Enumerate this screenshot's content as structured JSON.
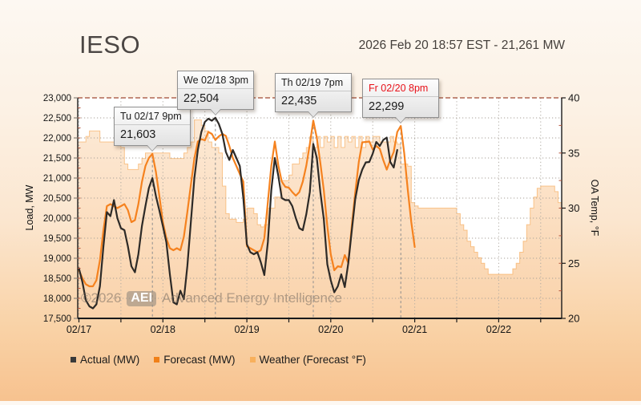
{
  "header": {
    "title": "IESO",
    "timestamp_line": "2026 Feb 20 18:57 EST - 21,261 MW",
    "current_load_mw": 21261
  },
  "watermark": {
    "year": "©2026",
    "badge": "AEI",
    "text": "Advanced Energy Intelligence"
  },
  "legend": [
    {
      "label": "Actual (MW)",
      "color": "#3a3a3a"
    },
    {
      "label": "Forecast (MW)",
      "color": "#f08019"
    },
    {
      "label": "Weather (Forecast °F)",
      "color": "#f8b05c"
    }
  ],
  "annotations": [
    {
      "time_label": "Tu 02/17 9pm",
      "value_label": "21,603",
      "value": 21603,
      "hour": 21,
      "header_color": "#1b1b1b"
    },
    {
      "time_label": "We 02/18 3pm",
      "value_label": "22,504",
      "value": 22504,
      "hour": 39,
      "header_color": "#1b1b1b"
    },
    {
      "time_label": "Th 02/19 7pm",
      "value_label": "22,435",
      "value": 22435,
      "hour": 67,
      "header_color": "#1b1b1b"
    },
    {
      "time_label": "Fr 02/20 8pm",
      "value_label": "22,299",
      "value": 22299,
      "hour": 92,
      "header_color": "#e8121a"
    }
  ],
  "chart_data": {
    "type": "line",
    "x_axis": {
      "labels": [
        "02/17",
        "02/18",
        "02/19",
        "02/20",
        "02/21",
        "02/22"
      ],
      "hours_per_label": 24,
      "total_hours": 138,
      "x_start": "02/17 00:00",
      "sample_interval_hours": 1,
      "minor_tick_hours": 12
    },
    "y_left": {
      "label": "Load, MW",
      "min": 17500,
      "max": 23000,
      "step": 500
    },
    "y_right": {
      "label": "OA Temp, °F",
      "min": 20,
      "max": 40,
      "step": 5
    },
    "grid": {
      "horizontal": "dotted",
      "vertical_every_hours": 12,
      "top_line_color": "#a14a33"
    },
    "series": [
      {
        "name": "Actual (MW)",
        "type": "line",
        "axis": "left",
        "color": "#2d2a27",
        "start_hour": 0,
        "values": [
          18750,
          18400,
          17950,
          17800,
          17750,
          17850,
          18300,
          19300,
          20150,
          20050,
          20450,
          20000,
          19750,
          19700,
          19300,
          18800,
          18650,
          19100,
          19800,
          20300,
          20750,
          21000,
          20550,
          20190,
          19800,
          19400,
          18600,
          17900,
          17850,
          18190,
          17980,
          18800,
          19900,
          21000,
          21700,
          22150,
          22400,
          22480,
          22430,
          22504,
          22350,
          22100,
          21650,
          21450,
          21700,
          21500,
          21300,
          20500,
          19350,
          19150,
          19100,
          19150,
          18900,
          18580,
          19400,
          20700,
          21500,
          21050,
          20500,
          20450,
          20450,
          20300,
          20000,
          19750,
          19700,
          20100,
          20650,
          21850,
          21500,
          20650,
          19980,
          18850,
          18450,
          18150,
          18300,
          18600,
          18280,
          18880,
          19680,
          20480,
          20950,
          21210,
          21390,
          21400,
          21610,
          21900,
          21800,
          21950,
          22010,
          21400,
          21261,
          21700
        ]
      },
      {
        "name": "Forecast (MW)",
        "type": "line",
        "axis": "left",
        "color": "#f5821f",
        "start_hour": 0,
        "values": [
          18700,
          18500,
          18350,
          18300,
          18300,
          18450,
          18950,
          19700,
          20300,
          20350,
          20300,
          20250,
          20300,
          20350,
          20200,
          19900,
          19950,
          20350,
          20900,
          21300,
          21500,
          21603,
          21150,
          20550,
          19900,
          19500,
          19250,
          19200,
          19250,
          19200,
          19540,
          20150,
          20830,
          21490,
          21910,
          21970,
          21940,
          22150,
          22100,
          21950,
          22040,
          22100,
          22050,
          21800,
          21500,
          21300,
          21100,
          20910,
          19300,
          19250,
          19200,
          19150,
          19200,
          19500,
          20400,
          21300,
          21910,
          21310,
          20910,
          20780,
          20760,
          20650,
          20560,
          20650,
          20910,
          21310,
          21850,
          22435,
          22000,
          21380,
          20700,
          19800,
          19100,
          18700,
          18800,
          18780,
          19080,
          18880,
          19800,
          20650,
          21400,
          21890,
          21900,
          21910,
          21710,
          21800,
          21730,
          21450,
          21210,
          21450,
          21650,
          22150,
          22299,
          21620,
          20710,
          19900,
          19280
        ]
      },
      {
        "name": "Weather (Forecast °F)",
        "type": "step-area",
        "axis": "right",
        "color": "#f8b05c",
        "start_hour": 0,
        "values": [
          36,
          36,
          36.5,
          37,
          37,
          37,
          36,
          36,
          36,
          36,
          36,
          36,
          35.5,
          34,
          33.5,
          33.5,
          33.5,
          34,
          34.5,
          35,
          35,
          35,
          35,
          35,
          35,
          35,
          34.5,
          34.5,
          34.5,
          34.5,
          35,
          35.5,
          36,
          38,
          38,
          37.5,
          37,
          36,
          35.5,
          35.5,
          35,
          32,
          29.5,
          29,
          29,
          28.7,
          28.7,
          29,
          30,
          30,
          29.5,
          28.5,
          28.3,
          28.5,
          30,
          30,
          31,
          31,
          32.5,
          32.5,
          33,
          34,
          34,
          34.5,
          35,
          35.5,
          36.5,
          35.5,
          36.5,
          35.5,
          36.5,
          36,
          36.5,
          35.5,
          36.5,
          35.5,
          36.5,
          36,
          36.5,
          35.5,
          36.5,
          35.5,
          36.5,
          36,
          36.5,
          36.5,
          36,
          36,
          36,
          36.5,
          36,
          35.8,
          34,
          34,
          33.8,
          30.5,
          30.2,
          30,
          30,
          30,
          30,
          30,
          30,
          30,
          30,
          30,
          30,
          30,
          29.5,
          28.5,
          28,
          27,
          26.5,
          26,
          25.5,
          25,
          24.5,
          24,
          24,
          24,
          24,
          24,
          24,
          24,
          24.5,
          25,
          26,
          27,
          28.5,
          30,
          31,
          31.8,
          32,
          32,
          32,
          32,
          31.5,
          30.5,
          30
        ]
      }
    ]
  }
}
